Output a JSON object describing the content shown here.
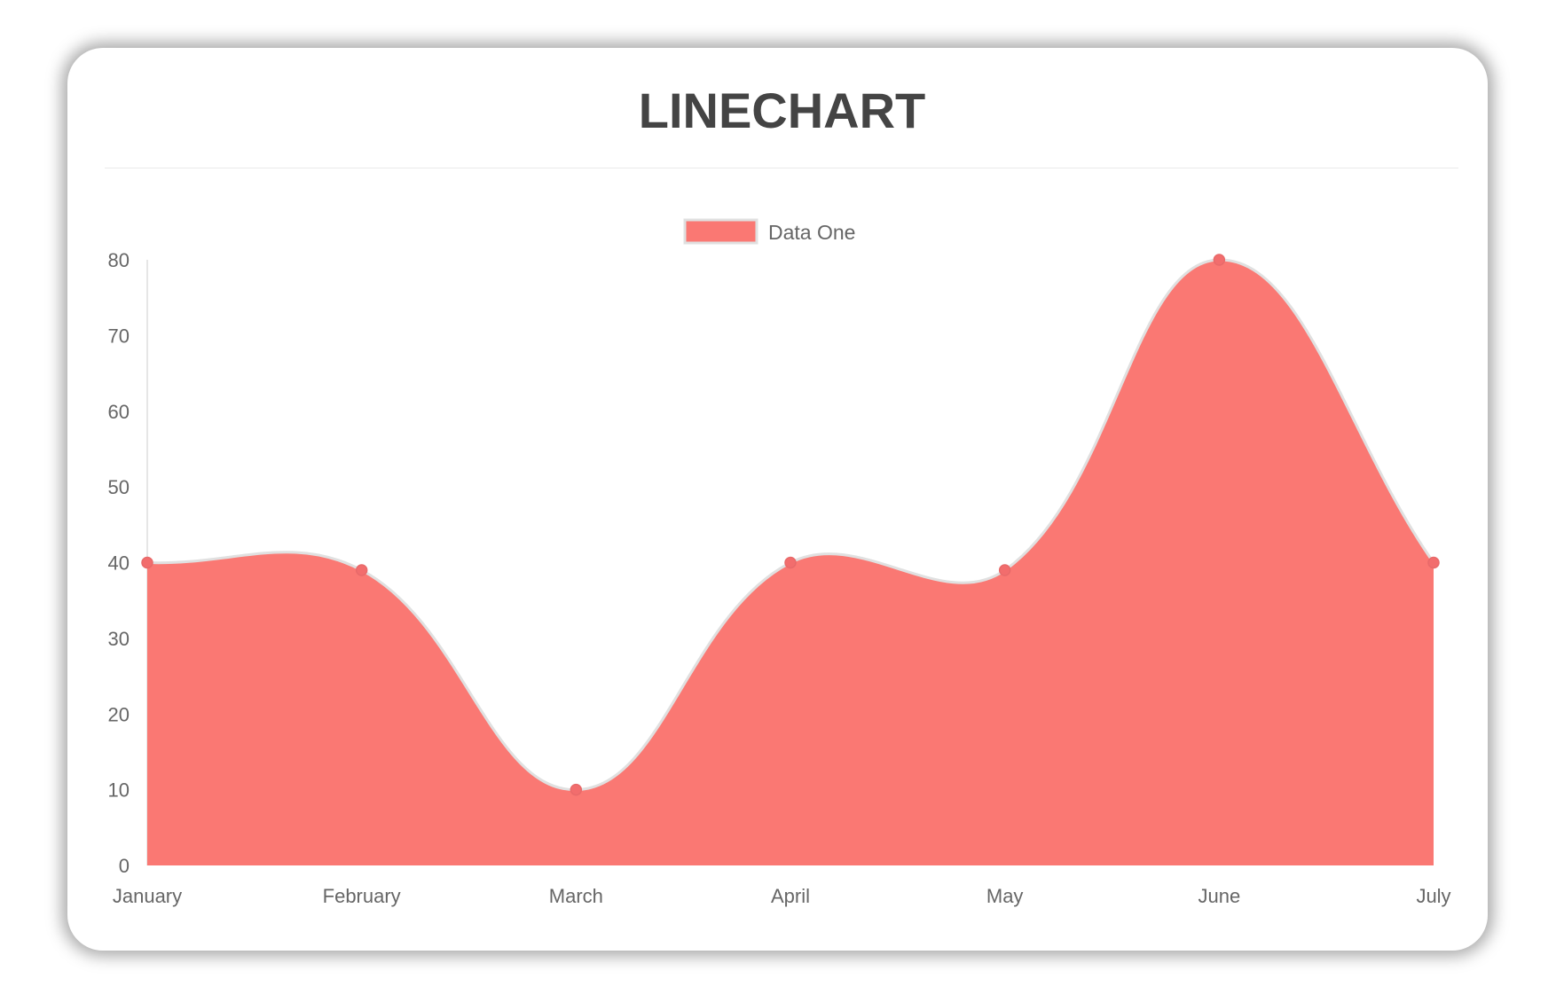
{
  "chart_data": {
    "type": "area",
    "title": "LINECHART",
    "categories": [
      "January",
      "February",
      "March",
      "April",
      "May",
      "June",
      "July"
    ],
    "series": [
      {
        "name": "Data One",
        "values": [
          40,
          39,
          10,
          40,
          39,
          80,
          40
        ],
        "fill_color": "#fa7873",
        "line_color": "#e0e0e0",
        "point_color": "#f26d6d"
      }
    ],
    "ylim": [
      0,
      80
    ],
    "yticks": [
      0,
      10,
      20,
      30,
      40,
      50,
      60,
      70,
      80
    ],
    "grid": false,
    "legend": "top-center",
    "smooth": true
  }
}
